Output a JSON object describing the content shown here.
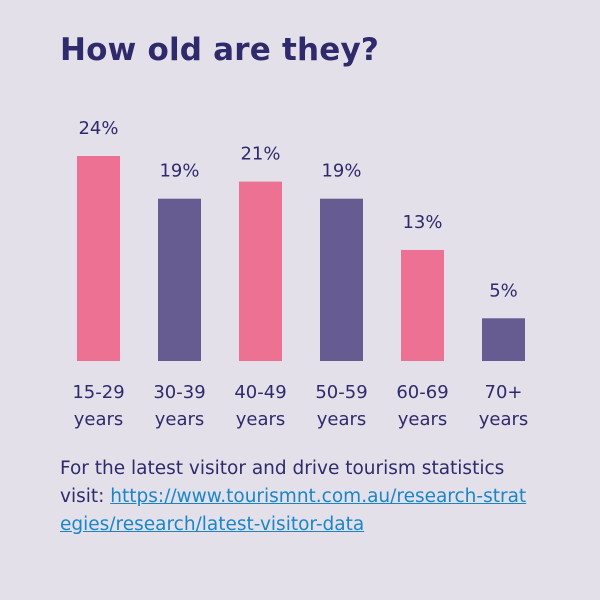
{
  "title": "How old are they?",
  "chart_data": {
    "type": "bar",
    "title": "How old are they?",
    "xlabel": "",
    "ylabel": "",
    "ylim": [
      0,
      24
    ],
    "grid": false,
    "categories": [
      [
        "15-29",
        "years"
      ],
      [
        "30-39",
        "years"
      ],
      [
        "40-49",
        "years"
      ],
      [
        "50-59",
        "years"
      ],
      [
        "60-69",
        "years"
      ],
      [
        "70+",
        "years"
      ]
    ],
    "values": [
      24,
      19,
      21,
      19,
      13,
      5
    ],
    "value_labels": [
      "24%",
      "19%",
      "21%",
      "19%",
      "13%",
      "5%"
    ],
    "colors": [
      "#ec7193",
      "#665c92",
      "#ec7193",
      "#665c92",
      "#ec7193",
      "#665c92"
    ]
  },
  "footer": {
    "text": "For the latest visitor and drive tourism statistics visit: ",
    "link": "https://www.tourismnt.com.au/research-strategies/research/latest-visitor-data"
  },
  "colors": {
    "background": "#e3e0ea",
    "text": "#2f2a6b",
    "pink": "#ec7193",
    "purple": "#665c92",
    "link": "#1a86c8"
  }
}
